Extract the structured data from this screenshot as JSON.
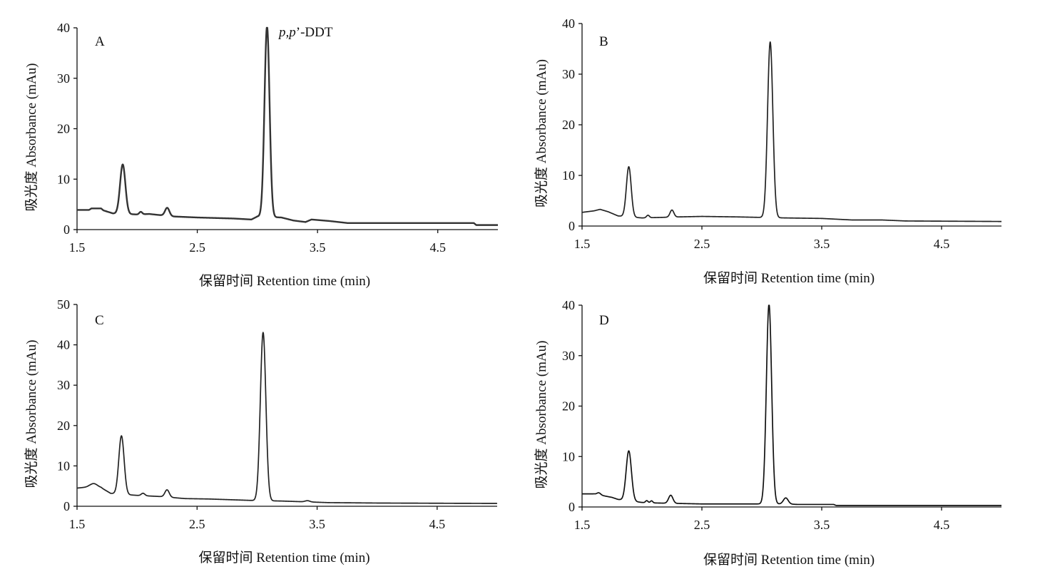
{
  "figure": {
    "annotation": {
      "compound_prefix": "p,p",
      "compound_suffix": "’-DDT"
    }
  },
  "chart_data": [
    {
      "type": "line",
      "panel_label": "A",
      "xlabel": "保留时间 Retention time (min)",
      "ylabel": "吸光度 Absorbance (mAu)",
      "xlim": [
        1.5,
        5.0
      ],
      "ylim": [
        0,
        40
      ],
      "xticks": [
        1.5,
        2.5,
        3.5,
        4.5
      ],
      "yticks": [
        0,
        10,
        20,
        30,
        40
      ],
      "line_color": "#333333",
      "baseline": [
        [
          1.5,
          3.9
        ],
        [
          1.6,
          3.9
        ],
        [
          1.62,
          4.2
        ],
        [
          1.7,
          4.2
        ],
        [
          1.72,
          3.8
        ],
        [
          1.8,
          3.2
        ],
        [
          2.0,
          3.0
        ],
        [
          2.1,
          3.1
        ],
        [
          2.3,
          2.6
        ],
        [
          2.5,
          2.4
        ],
        [
          2.8,
          2.2
        ],
        [
          2.95,
          2.0
        ],
        [
          3.0,
          2.6
        ],
        [
          3.2,
          2.4
        ],
        [
          3.3,
          1.8
        ],
        [
          3.4,
          1.5
        ],
        [
          3.45,
          2.0
        ],
        [
          3.6,
          1.7
        ],
        [
          3.75,
          1.3
        ],
        [
          4.0,
          1.3
        ],
        [
          4.8,
          1.3
        ],
        [
          4.82,
          0.9
        ],
        [
          5.0,
          0.9
        ]
      ],
      "peaks": [
        {
          "rt": 1.88,
          "height": 9.8,
          "width": 0.022
        },
        {
          "rt": 2.03,
          "height": 0.5,
          "width": 0.012
        },
        {
          "rt": 2.25,
          "height": 1.6,
          "width": 0.018
        },
        {
          "rt": 3.08,
          "height": 37.8,
          "width": 0.021
        }
      ]
    },
    {
      "type": "line",
      "panel_label": "B",
      "xlabel": "保留时间 Retention time (min)",
      "ylabel": "吸光度 Absorbance (mAu)",
      "xlim": [
        1.5,
        5.0
      ],
      "ylim": [
        0,
        40
      ],
      "xticks": [
        1.5,
        2.5,
        3.5,
        4.5
      ],
      "yticks": [
        0,
        10,
        20,
        30,
        40
      ],
      "line_color": "#222222",
      "baseline": [
        [
          1.5,
          2.7
        ],
        [
          1.6,
          3.0
        ],
        [
          1.65,
          3.3
        ],
        [
          1.72,
          2.8
        ],
        [
          1.8,
          2.0
        ],
        [
          2.0,
          1.6
        ],
        [
          2.3,
          1.8
        ],
        [
          2.5,
          1.9
        ],
        [
          2.8,
          1.8
        ],
        [
          3.0,
          1.7
        ],
        [
          3.2,
          1.6
        ],
        [
          3.5,
          1.5
        ],
        [
          3.75,
          1.2
        ],
        [
          4.0,
          1.2
        ],
        [
          4.2,
          1.0
        ],
        [
          5.0,
          0.9
        ]
      ],
      "peaks": [
        {
          "rt": 1.89,
          "height": 9.9,
          "width": 0.02
        },
        {
          "rt": 2.05,
          "height": 0.5,
          "width": 0.012
        },
        {
          "rt": 2.25,
          "height": 1.4,
          "width": 0.016
        },
        {
          "rt": 3.07,
          "height": 34.7,
          "width": 0.022
        }
      ]
    },
    {
      "type": "line",
      "panel_label": "C",
      "xlabel": "保留时间 Retention time (min)",
      "ylabel": "吸光度 Absorbance (mAu)",
      "xlim": [
        1.5,
        5.0
      ],
      "ylim": [
        0,
        50
      ],
      "xticks": [
        1.5,
        2.5,
        3.5,
        4.5
      ],
      "yticks": [
        0,
        10,
        20,
        30,
        40,
        50
      ],
      "line_color": "#222222",
      "baseline": [
        [
          1.5,
          4.5
        ],
        [
          1.6,
          4.8
        ],
        [
          1.7,
          4.6
        ],
        [
          1.78,
          3.2
        ],
        [
          1.85,
          3.0
        ],
        [
          2.0,
          2.7
        ],
        [
          2.2,
          2.4
        ],
        [
          2.4,
          1.9
        ],
        [
          2.6,
          1.8
        ],
        [
          2.8,
          1.6
        ],
        [
          3.0,
          1.4
        ],
        [
          3.2,
          1.3
        ],
        [
          3.4,
          1.1
        ],
        [
          3.6,
          0.9
        ],
        [
          4.0,
          0.8
        ],
        [
          5.0,
          0.7
        ]
      ],
      "peaks": [
        {
          "rt": 1.64,
          "height": 0.9,
          "width": 0.03
        },
        {
          "rt": 1.87,
          "height": 14.5,
          "width": 0.022
        },
        {
          "rt": 2.05,
          "height": 0.6,
          "width": 0.015
        },
        {
          "rt": 2.25,
          "height": 1.8,
          "width": 0.018
        },
        {
          "rt": 3.05,
          "height": 41.7,
          "width": 0.023
        },
        {
          "rt": 3.42,
          "height": 0.3,
          "width": 0.02
        }
      ]
    },
    {
      "type": "line",
      "panel_label": "D",
      "xlabel": "保留时间 Retention time (min)",
      "ylabel": "吸光度 Absorbance (mAu)",
      "xlim": [
        1.5,
        5.0
      ],
      "ylim": [
        0,
        40
      ],
      "xticks": [
        1.5,
        2.5,
        3.5,
        4.5
      ],
      "yticks": [
        0,
        10,
        20,
        30,
        40
      ],
      "line_color": "#111111",
      "baseline": [
        [
          1.5,
          2.6
        ],
        [
          1.6,
          2.6
        ],
        [
          1.75,
          1.9
        ],
        [
          1.8,
          1.5
        ],
        [
          2.0,
          0.9
        ],
        [
          2.1,
          0.8
        ],
        [
          2.3,
          0.7
        ],
        [
          2.5,
          0.6
        ],
        [
          3.0,
          0.6
        ],
        [
          3.2,
          0.6
        ],
        [
          3.3,
          0.5
        ],
        [
          3.6,
          0.5
        ],
        [
          3.62,
          0.3
        ],
        [
          5.0,
          0.3
        ]
      ],
      "peaks": [
        {
          "rt": 1.64,
          "height": 0.4,
          "width": 0.015
        },
        {
          "rt": 1.89,
          "height": 9.9,
          "width": 0.022
        },
        {
          "rt": 2.04,
          "height": 0.4,
          "width": 0.01
        },
        {
          "rt": 2.08,
          "height": 0.4,
          "width": 0.01
        },
        {
          "rt": 2.24,
          "height": 1.6,
          "width": 0.018
        },
        {
          "rt": 3.06,
          "height": 39.6,
          "width": 0.022
        },
        {
          "rt": 3.2,
          "height": 1.2,
          "width": 0.02
        }
      ]
    }
  ]
}
